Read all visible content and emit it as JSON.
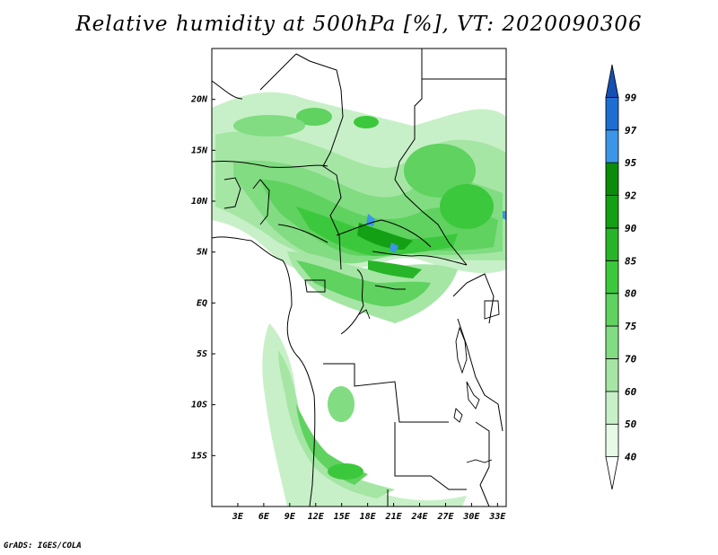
{
  "title": "Relative humidity at 500hPa [%], VT: 2020090306",
  "footer": "GrADS: IGES/COLA",
  "map": {
    "lon_range": [
      0,
      34
    ],
    "lat_range": [
      -20,
      25
    ],
    "lat_ticks": [
      {
        "value": 20,
        "label": "20N"
      },
      {
        "value": 15,
        "label": "15N"
      },
      {
        "value": 10,
        "label": "10N"
      },
      {
        "value": 5,
        "label": "5N"
      },
      {
        "value": 0,
        "label": "EQ"
      },
      {
        "value": -5,
        "label": "5S"
      },
      {
        "value": -10,
        "label": "10S"
      },
      {
        "value": -15,
        "label": "15S"
      }
    ],
    "lon_ticks": [
      {
        "value": 3,
        "label": "3E"
      },
      {
        "value": 6,
        "label": "6E"
      },
      {
        "value": 9,
        "label": "9E"
      },
      {
        "value": 12,
        "label": "12E"
      },
      {
        "value": 15,
        "label": "15E"
      },
      {
        "value": 18,
        "label": "18E"
      },
      {
        "value": 21,
        "label": "21E"
      },
      {
        "value": 24,
        "label": "24E"
      },
      {
        "value": 27,
        "label": "27E"
      },
      {
        "value": 30,
        "label": "30E"
      },
      {
        "value": 33,
        "label": "33E"
      }
    ]
  },
  "colorbar": {
    "levels": [
      "40",
      "50",
      "60",
      "70",
      "75",
      "80",
      "85",
      "90",
      "92",
      "95",
      "97",
      "99"
    ],
    "colors": [
      "#ffffff",
      "#e6fae6",
      "#c8f0c8",
      "#a5e6a5",
      "#82dc82",
      "#5fd25f",
      "#3cc83c",
      "#28b428",
      "#14a014",
      "#0a8c0a",
      "#3c96e6",
      "#1e6ed2",
      "#1450b4"
    ]
  }
}
